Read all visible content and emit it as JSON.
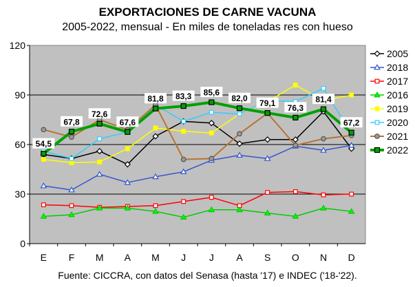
{
  "chart_data": {
    "type": "line",
    "title": "EXPORTACIONES DE CARNE VACUNA",
    "subtitle": "2005-2022, mensual - En miles de toneladas res con hueso",
    "source": "Fuente: CICCRA, con datos del Senasa (hasta '17) e INDEC ('18-'22).",
    "categories": [
      "E",
      "F",
      "M",
      "A",
      "M",
      "J",
      "J",
      "A",
      "S",
      "O",
      "N",
      "D"
    ],
    "ylim": [
      0,
      120
    ],
    "yticks": [
      0,
      30,
      60,
      90,
      120
    ],
    "grid": true,
    "legend_position": "right",
    "plot_background": "#c0c0c0",
    "series": [
      {
        "name": "2005",
        "color": "#000000",
        "marker": "diamond",
        "fill": "#ffffff",
        "width": 1.5,
        "values": [
          54,
          51.5,
          56,
          48,
          65,
          74,
          73,
          60.5,
          63,
          63,
          80,
          57.5
        ]
      },
      {
        "name": "2018",
        "color": "#3355cc",
        "marker": "triangle",
        "fill": "#ffffff",
        "width": 1.5,
        "values": [
          35,
          32.5,
          42,
          37,
          40.5,
          43.5,
          50.5,
          53.5,
          51.5,
          59,
          56.5,
          59.5
        ]
      },
      {
        "name": "2017",
        "color": "#ff0000",
        "marker": "square",
        "fill": "#ffffff",
        "width": 1.5,
        "values": [
          23.5,
          23,
          22,
          22.5,
          23,
          25.5,
          28,
          23,
          31,
          31.5,
          29.5,
          30
        ]
      },
      {
        "name": "2016",
        "color": "#00cc00",
        "marker": "triangle",
        "fill": "#00ff00",
        "width": 1.5,
        "values": [
          16.5,
          17.5,
          21.5,
          21.5,
          19.5,
          16,
          20.5,
          20.5,
          18.5,
          16.5,
          21.5,
          19.5
        ]
      },
      {
        "name": "2019",
        "color": "#ffff00",
        "marker": "square",
        "fill": "#ffff00",
        "width": 1.5,
        "values": [
          51,
          49,
          49.5,
          57.5,
          70,
          68,
          67,
          78.5,
          86,
          96,
          86.5,
          90
        ]
      },
      {
        "name": "2020",
        "color": "#33ccff",
        "marker": "square",
        "fill": "#ffffff",
        "width": 1.5,
        "values": [
          56,
          51.5,
          63.5,
          67.5,
          84,
          74,
          79.5,
          78.5,
          86.5,
          86,
          94,
          66.5
        ]
      },
      {
        "name": "2021",
        "color": "#b87333",
        "marker": "circle",
        "fill": "#999999",
        "width": 2,
        "values": [
          69,
          64.5,
          75,
          69,
          84,
          51,
          51.5,
          66.5,
          79,
          59.5,
          63.5,
          65.5
        ]
      },
      {
        "name": "2022",
        "color": "#00a000",
        "marker": "square",
        "fill": "#00a000",
        "width": 4,
        "values": [
          54.5,
          67.8,
          72.6,
          67.6,
          81.8,
          83.3,
          85.6,
          82.0,
          79.1,
          76.3,
          81.4,
          67.2
        ]
      }
    ],
    "data_labels": {
      "series": "2022",
      "labels": [
        "54,5",
        "67,8",
        "72,6",
        "67,6",
        "81,8",
        "83,3",
        "85,6",
        "82,0",
        "79,1",
        "76,3",
        "81,4",
        "67,2"
      ]
    }
  }
}
